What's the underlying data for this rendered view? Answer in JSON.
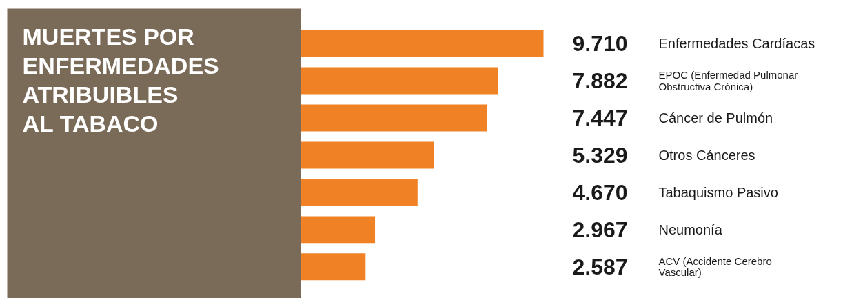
{
  "chart_data": {
    "type": "bar",
    "orientation": "horizontal",
    "title": "MUERTES POR ENFERMEDADES ATRIBUIBLES AL TABACO",
    "categories": [
      "Enfermedades Cardíacas",
      "EPOC (Enfermedad Pulmonar Obstructiva Crónica)",
      "Cáncer de Pulmón",
      "Otros Cánceres",
      "Tabaquismo Pasivo",
      "Neumonía",
      "ACV (Accidente Cerebro Vascular)"
    ],
    "values": [
      9710,
      7882,
      7447,
      5329,
      4670,
      2967,
      2587
    ],
    "value_labels": [
      "9.710",
      "7.882",
      "7.447",
      "5.329",
      "4.670",
      "2.967",
      "2.587"
    ],
    "color": "#f08124"
  }
}
